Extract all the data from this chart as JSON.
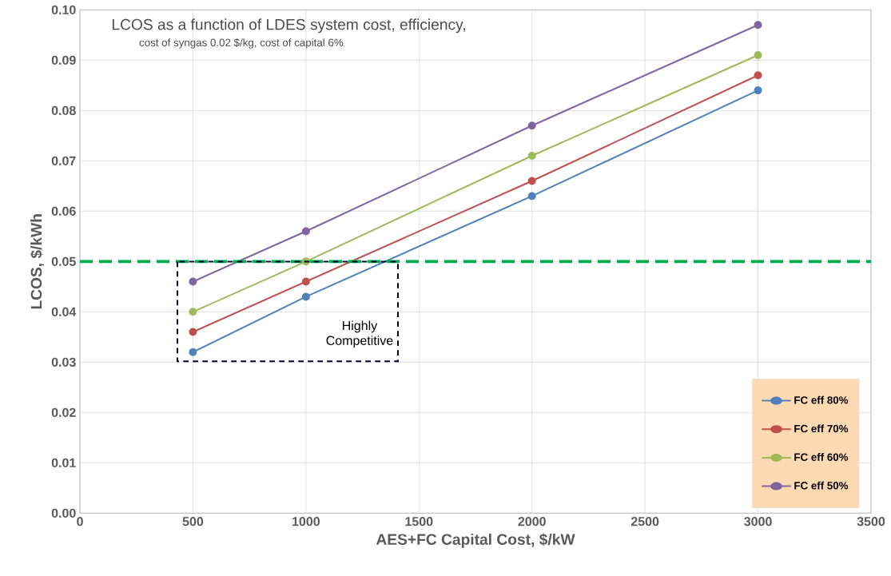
{
  "chart_data": {
    "type": "line",
    "title": "LCOS as a function of LDES system cost, efficiency,",
    "subtitle": "cost of syngas 0.02 $/kg, cost of capital 6%",
    "xlabel": "AES+FC Capital Cost, $/kW",
    "ylabel": "LCOS, $/kWh",
    "x": [
      500,
      1000,
      2000,
      3000
    ],
    "series": [
      {
        "name": "FC eff 80%",
        "color": "#4f81bd",
        "values": [
          0.032,
          0.043,
          0.063,
          0.084
        ]
      },
      {
        "name": "FC eff 70%",
        "color": "#c0504d",
        "values": [
          0.036,
          0.046,
          0.066,
          0.087
        ]
      },
      {
        "name": "FC eff 60%",
        "color": "#9bbb59",
        "values": [
          0.04,
          0.05,
          0.071,
          0.091
        ]
      },
      {
        "name": "FC eff 50%",
        "color": "#8064a2",
        "values": [
          0.046,
          0.056,
          0.077,
          0.097
        ]
      }
    ],
    "xlim": [
      0,
      3500
    ],
    "xticks": [
      0,
      500,
      1000,
      1500,
      2000,
      2500,
      3000,
      3500
    ],
    "ylim": [
      0,
      0.1
    ],
    "yticks": [
      {
        "value": 0,
        "label": "0.00"
      },
      0.01,
      0.02,
      0.03,
      0.04,
      0.05,
      0.06,
      0.07,
      0.08,
      0.09,
      {
        "value": 0.1,
        "label": "0.10"
      }
    ],
    "ref_lines": [
      {
        "axis": "y",
        "value": 0.05,
        "color": "#00b050",
        "line_style": "dashed"
      }
    ],
    "annotations": [
      "Highly Competitive"
    ],
    "grid": true,
    "legend": "bottom right",
    "marker": "circle",
    "line_style": "solid"
  }
}
